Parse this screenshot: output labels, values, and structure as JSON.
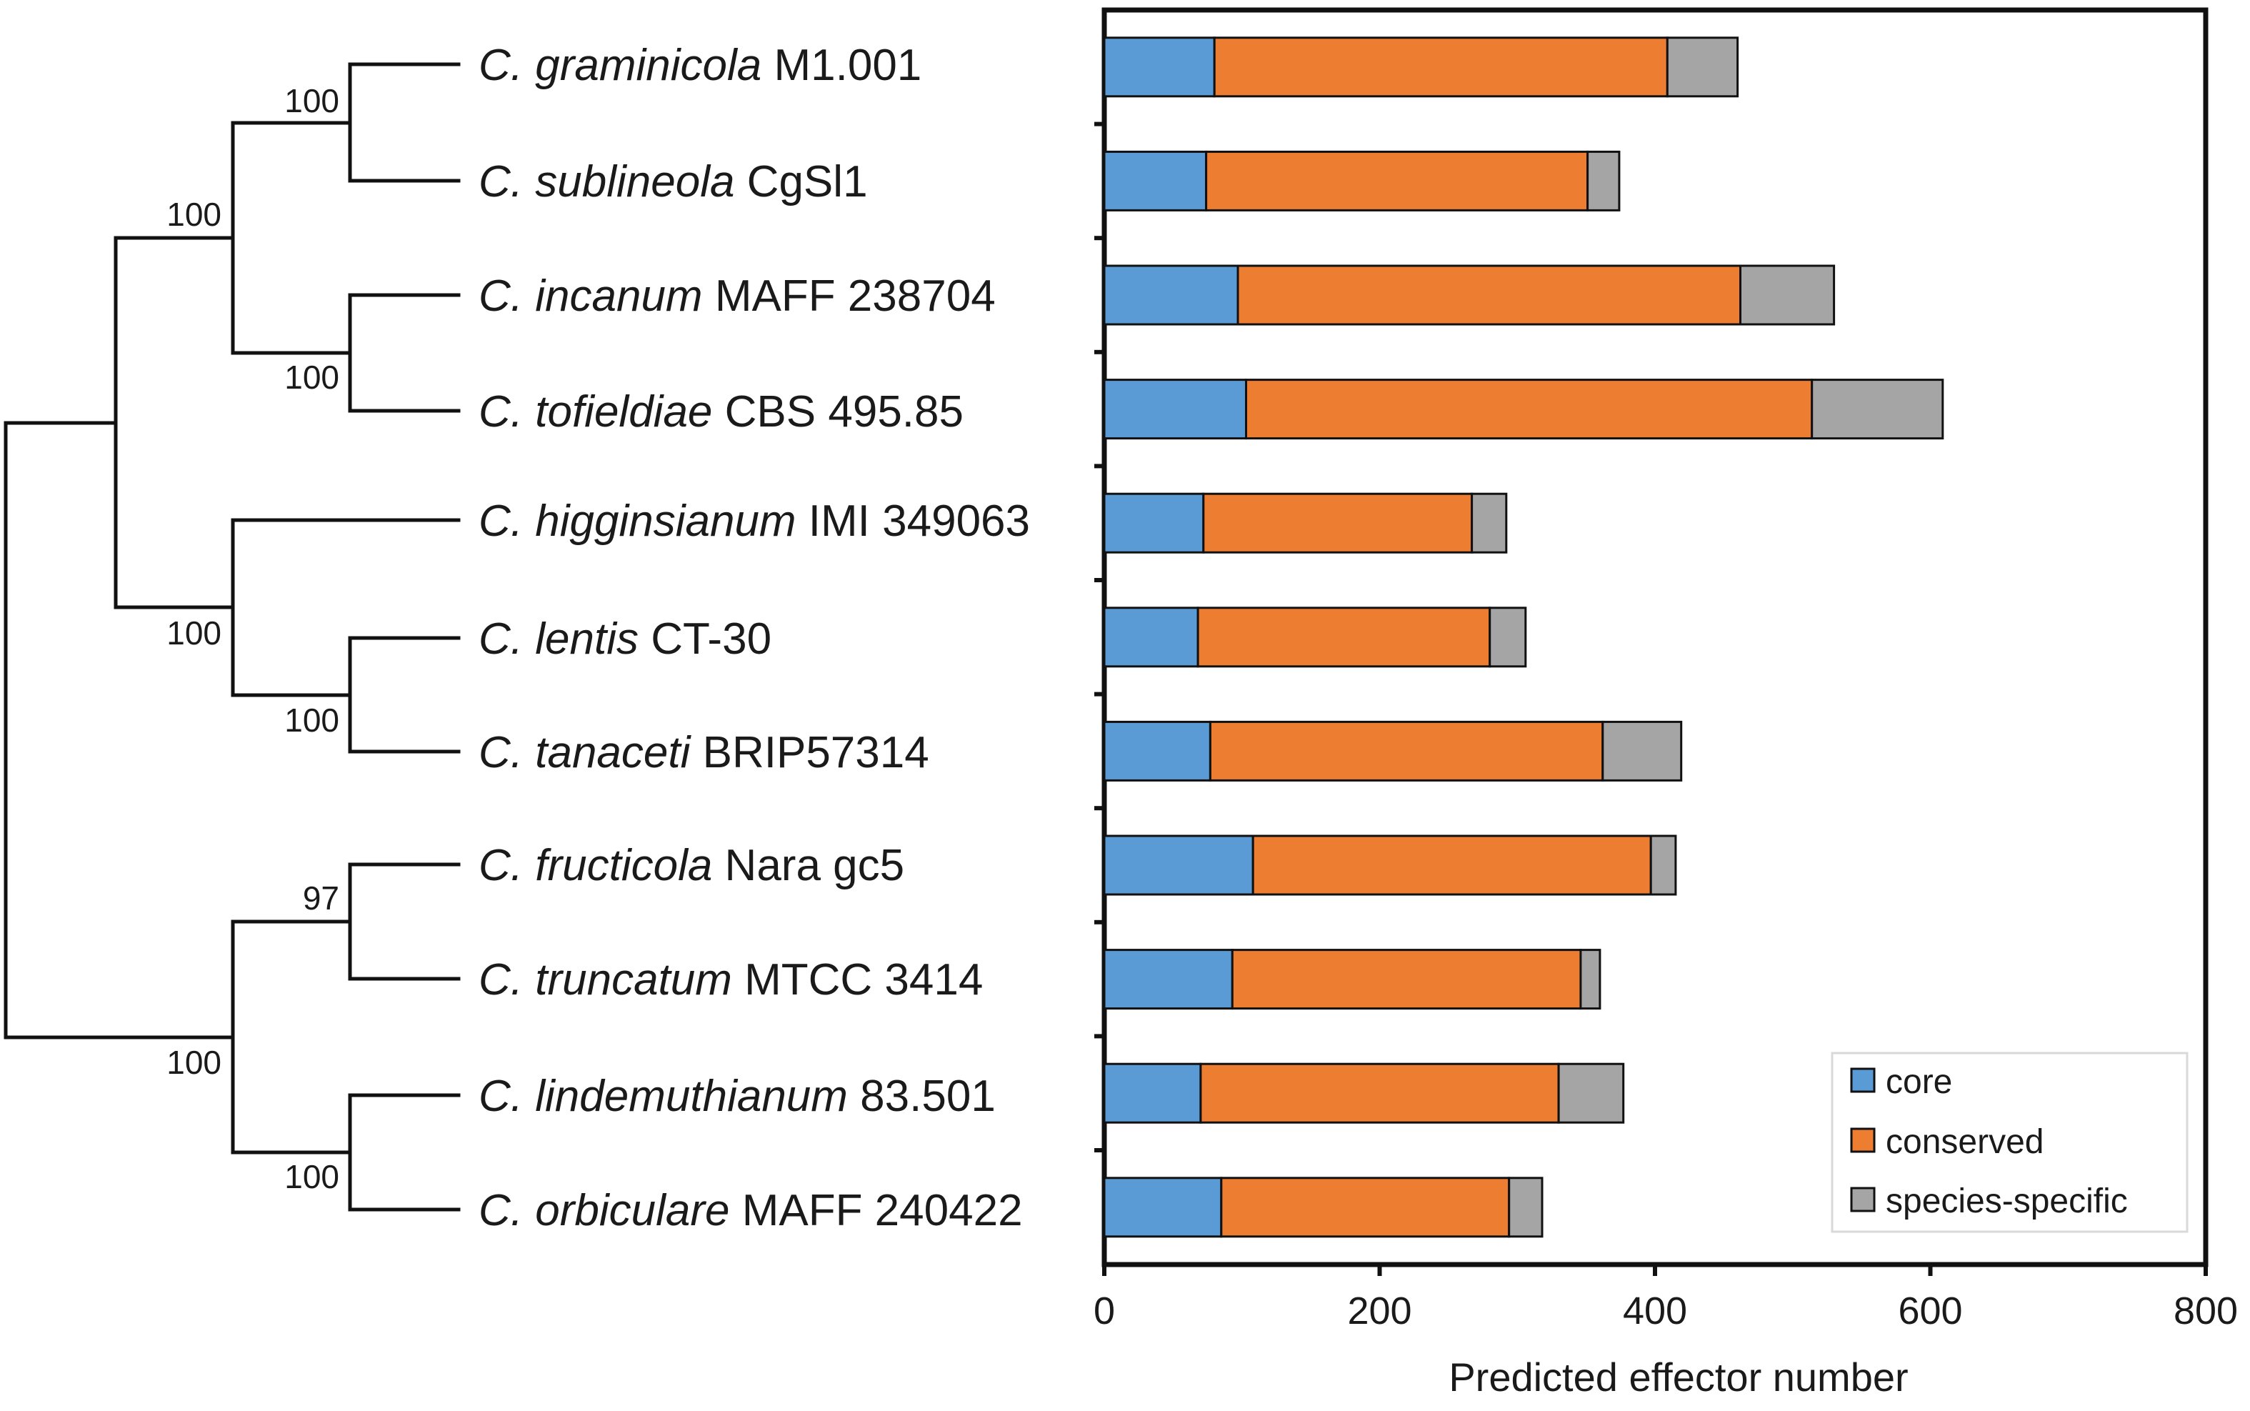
{
  "chart_data": {
    "type": "bar",
    "stacked": true,
    "orientation": "horizontal",
    "title": "",
    "xlabel": "Predicted effector number",
    "ylabel": "",
    "xlim": [
      0,
      800
    ],
    "xticks": [
      "0",
      "200",
      "400",
      "600",
      "800"
    ],
    "categories": [
      {
        "genus": "C.",
        "species": "graminicola",
        "strain": "M1.001"
      },
      {
        "genus": "C.",
        "species": "sublineola",
        "strain": "CgSl1"
      },
      {
        "genus": "C.",
        "species": "incanum",
        "strain": "MAFF 238704"
      },
      {
        "genus": "C.",
        "species": "tofieldiae",
        "strain": "CBS 495.85"
      },
      {
        "genus": "C.",
        "species": "higginsianum",
        "strain": "IMI 349063"
      },
      {
        "genus": "C.",
        "species": "lentis",
        "strain": "CT-30"
      },
      {
        "genus": "C.",
        "species": "tanaceti",
        "strain": "BRIP57314"
      },
      {
        "genus": "C.",
        "species": "fructicola",
        "strain": "Nara gc5"
      },
      {
        "genus": "C.",
        "species": "truncatum",
        "strain": "MTCC 3414"
      },
      {
        "genus": "C.",
        "species": "lindemuthianum",
        "strain": "83.501"
      },
      {
        "genus": "C.",
        "species": "orbiculare",
        "strain": "MAFF 240422"
      }
    ],
    "series": [
      {
        "name": "core",
        "color": "#5b9bd5",
        "values": [
          80,
          74,
          97,
          103,
          72,
          68,
          77,
          108,
          93,
          70,
          85
        ]
      },
      {
        "name": "conserved",
        "color": "#ed7d31",
        "values": [
          329,
          277,
          365,
          411,
          195,
          212,
          285,
          289,
          253,
          260,
          209
        ]
      },
      {
        "name": "species-specific",
        "color": "#a5a5a5",
        "values": [
          51,
          23,
          68,
          95,
          25,
          26,
          57,
          18,
          14,
          47,
          24
        ]
      }
    ],
    "legend_position": "bottom-right",
    "grid": false
  },
  "tree": {
    "bootstrap": {
      "gram_subl": "100",
      "pair_A": "100",
      "inc_tof": "100",
      "higg_lt": "100",
      "lent_tan": "100",
      "fruc_trunc": "97",
      "clade_C": "100",
      "lind_orb": "100"
    }
  },
  "colors": {
    "core": "#5b9bd5",
    "conserved": "#ed7d31",
    "species_specific": "#a5a5a5",
    "outline": "#111111"
  }
}
